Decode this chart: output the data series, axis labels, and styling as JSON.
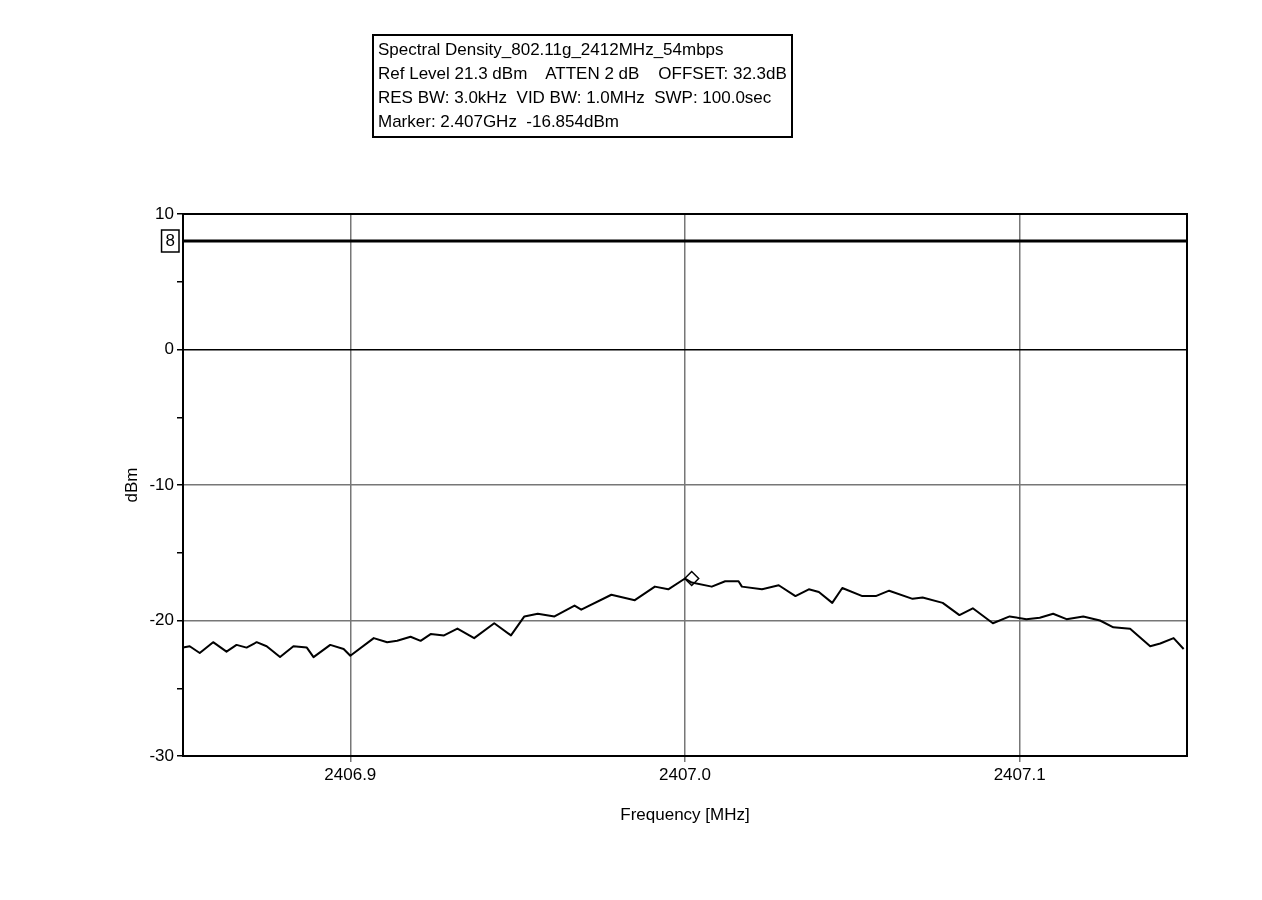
{
  "chart_data": {
    "type": "line",
    "title": "Spectral Density_802.11g_2412MHz_54mbps",
    "annotations": [
      "Ref Level 21.3 dBm    ATTEN 2 dB    OFFSET: 32.3dB",
      "RES BW: 3.0kHz  VID BW: 1.0MHz  SWP: 100.0sec",
      "Marker: 2.407GHz  -16.854dBm"
    ],
    "xlabel": "Frequency [MHz]",
    "ylabel": "dBm",
    "xlim": [
      2406.85,
      2407.15
    ],
    "xticks": [
      2406.9,
      {
        "value": 2407,
        "label": "2407.0"
      },
      2407.1
    ],
    "ylim": [
      -30,
      10
    ],
    "yticks": [
      -30,
      {
        "value": -25,
        "label": null
      },
      -20,
      {
        "value": -15,
        "label": null
      },
      -10,
      {
        "value": -5,
        "label": null
      },
      0,
      {
        "value": 5,
        "label": null
      },
      10
    ],
    "grid": true,
    "legend": false,
    "marker": "none",
    "line_style": "solid",
    "ref_lines": [
      {
        "axis": "y",
        "value": 8,
        "label": "8",
        "color": "#000000"
      }
    ],
    "series": [
      {
        "color": "#000000",
        "x": [
          2406.85,
          2406.852,
          2406.855,
          2406.859,
          2406.863,
          2406.866,
          2406.869,
          2406.872,
          2406.875,
          2406.879,
          2406.883,
          2406.887,
          2406.889,
          2406.894,
          2406.898,
          2406.9,
          2406.907,
          2406.911,
          2406.914,
          2406.918,
          2406.921,
          2406.924,
          2406.928,
          2406.932,
          2406.937,
          2406.943,
          2406.948,
          2406.952,
          2406.956,
          2406.961,
          2406.967,
          2406.969,
          2406.978,
          2406.985,
          2406.991,
          2406.995,
          2407.0,
          2407.002,
          2407.008,
          2407.012,
          2407.016,
          2407.017,
          2407.023,
          2407.028,
          2407.033,
          2407.037,
          2407.04,
          2407.044,
          2407.047,
          2407.053,
          2407.057,
          2407.061,
          2407.068,
          2407.071,
          2407.077,
          2407.082,
          2407.086,
          2407.092,
          2407.097,
          2407.102,
          2407.106,
          2407.11,
          2407.114,
          2407.119,
          2407.124,
          2407.128,
          2407.133,
          2407.139,
          2407.142,
          2407.146,
          2407.149
        ],
        "values": [
          -22.0,
          -21.9,
          -22.4,
          -21.6,
          -22.3,
          -21.8,
          -22.0,
          -21.6,
          -21.9,
          -22.7,
          -21.9,
          -22.0,
          -22.7,
          -21.8,
          -22.1,
          -22.6,
          -21.3,
          -21.6,
          -21.5,
          -21.2,
          -21.5,
          -21.0,
          -21.1,
          -20.6,
          -21.3,
          -20.2,
          -21.1,
          -19.7,
          -19.5,
          -19.7,
          -18.9,
          -19.2,
          -18.1,
          -18.5,
          -17.5,
          -17.7,
          -16.9,
          -17.2,
          -17.5,
          -17.1,
          -17.1,
          -17.5,
          -17.7,
          -17.4,
          -18.2,
          -17.7,
          -17.9,
          -18.7,
          -17.6,
          -18.2,
          -18.2,
          -17.8,
          -18.4,
          -18.3,
          -18.7,
          -19.6,
          -19.1,
          -20.2,
          -19.7,
          -19.9,
          -19.8,
          -19.5,
          -19.9,
          -19.7,
          -20.0,
          -20.5,
          -20.6,
          -21.9,
          -21.7,
          -21.3,
          -22.1
        ]
      },
      {
        "type": "scatter",
        "color": "#000000",
        "marker": "diamond",
        "x": [
          2407.002
        ],
        "values": [
          -16.9
        ]
      }
    ]
  }
}
